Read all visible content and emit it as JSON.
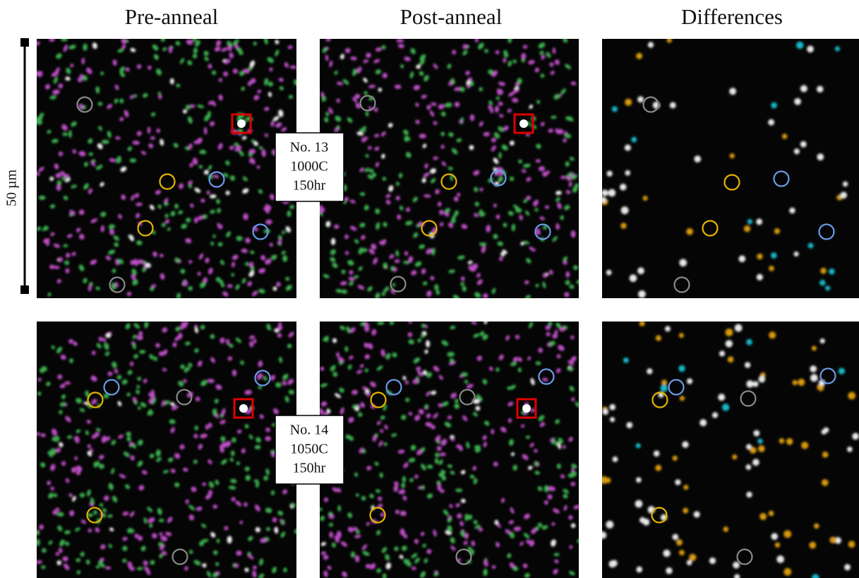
{
  "column_titles": [
    "Pre-anneal",
    "Post-anneal",
    "Differences"
  ],
  "scale_bar": "50 µm",
  "samples": [
    {
      "lines": [
        "No. 13",
        "1000C",
        "150hr"
      ]
    },
    {
      "lines": [
        "No. 14",
        "1050C",
        "150hr"
      ]
    }
  ]
}
